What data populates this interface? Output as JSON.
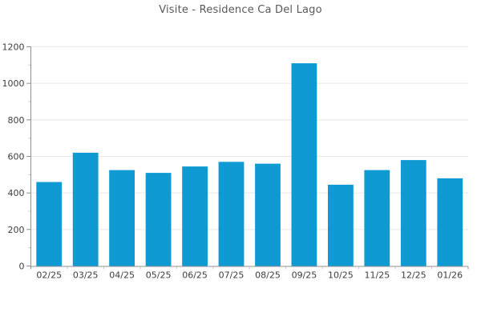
{
  "page": {
    "background": "#ffffff"
  },
  "chart_data": {
    "type": "bar",
    "title": "Visite - Residence Ca Del Lago",
    "categories": [
      "02/25",
      "03/25",
      "04/25",
      "05/25",
      "06/25",
      "07/25",
      "08/25",
      "09/25",
      "10/25",
      "11/25",
      "12/25",
      "01/26"
    ],
    "values": [
      460,
      620,
      525,
      510,
      545,
      570,
      560,
      1110,
      445,
      525,
      580,
      480
    ],
    "xlabel": "",
    "ylabel": "",
    "ylim": [
      0,
      1200
    ],
    "ytick_step": 200,
    "ytick_minor_step": 100,
    "ytick_labels": [
      "0",
      "200",
      "400",
      "600",
      "800",
      "1000",
      "1200"
    ],
    "grid": true,
    "legend": false,
    "colors": {
      "bar": "#0f9ad3",
      "grid": "#e7e7e7",
      "axis": "#8f8f8f",
      "minor_tick": "#c4c4c4",
      "tick_label": "#3d3d3d",
      "title": "#595959",
      "background": "#ffffff"
    }
  }
}
